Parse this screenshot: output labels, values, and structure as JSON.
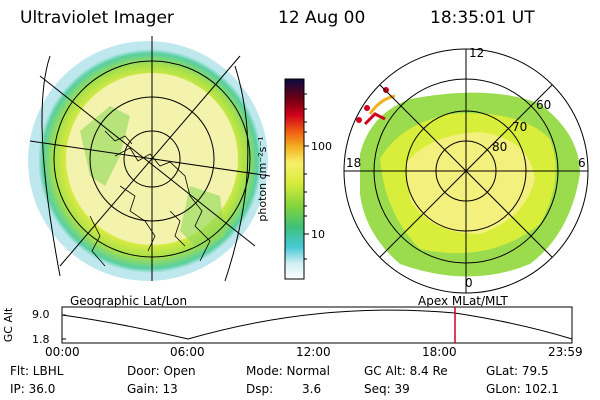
{
  "header": {
    "title": "Ultraviolet Imager",
    "date": "12 Aug 00",
    "time": "18:35:01 UT"
  },
  "left_panel": {
    "label": "Geographic Lat/Lon"
  },
  "right_panel": {
    "label": "Apex MLat/MLT",
    "mlt_labels": {
      "top": "12",
      "bottom": "0",
      "left": "18",
      "right": "6"
    },
    "lat_labels": [
      "60",
      "70",
      "80"
    ]
  },
  "colorbar": {
    "title": "photon cm⁻²s⁻¹",
    "ticks": [
      "100",
      "10"
    ]
  },
  "altitude_plot": {
    "ylabel": "GC Alt",
    "y_ticks": [
      "9.0",
      "1.8"
    ],
    "x_ticks": [
      "00:00",
      "06:00",
      "12:00",
      "18:00",
      "23:59"
    ],
    "current_marker_time": "18:35"
  },
  "info": {
    "flt": "Flt: LBHL",
    "ip": "IP: 36.0",
    "door": "Door: Open",
    "gain": "Gain: 13",
    "mode": "Mode: Normal",
    "dsp_label": "Dsp:",
    "dsp_value": "3.6",
    "gc_alt": "GC Alt: 8.4 Re",
    "seq": "Seq: 39",
    "glat": "GLat: 79.5",
    "glon": "GLon: 102.1"
  }
}
